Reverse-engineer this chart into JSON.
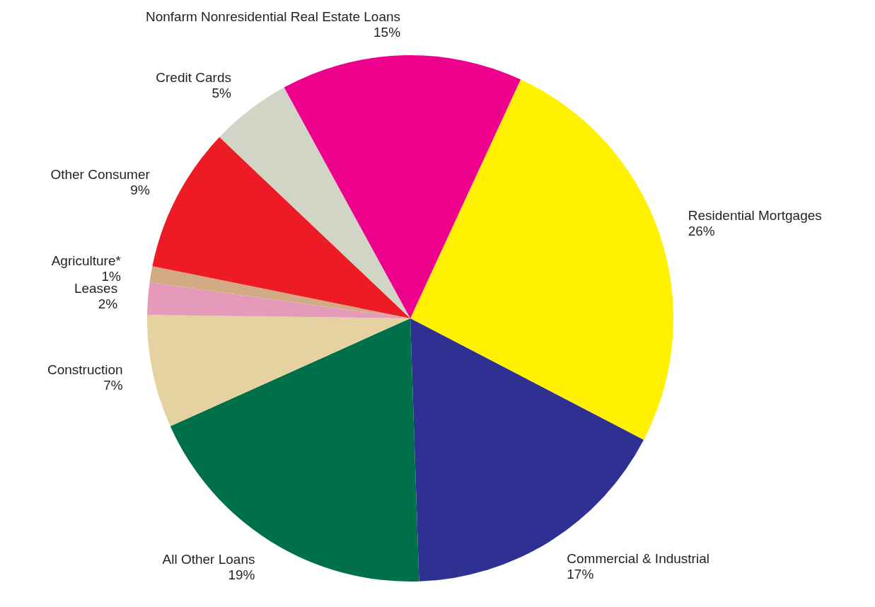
{
  "chart_data": {
    "type": "pie",
    "categories": [
      "Residential Mortgages",
      "Commercial & Industrial",
      "All Other Loans",
      "Construction",
      "Leases",
      "Agriculture*",
      "Other Consumer",
      "Credit Cards",
      "Nonfarm Nonresidential Real Estate Loans"
    ],
    "values": [
      26,
      17,
      19,
      7,
      2,
      1,
      9,
      5,
      15
    ],
    "value_labels": [
      "26%",
      "17%",
      "19%",
      "7%",
      "2%",
      "1%",
      "9%",
      "5%",
      "15%"
    ],
    "colors": [
      "#fff100",
      "#2e3192",
      "#00704a",
      "#e6d1a0",
      "#e59ab9",
      "#d2ab85",
      "#ed1c24",
      "#d1d5c5",
      "#ec008c"
    ]
  }
}
